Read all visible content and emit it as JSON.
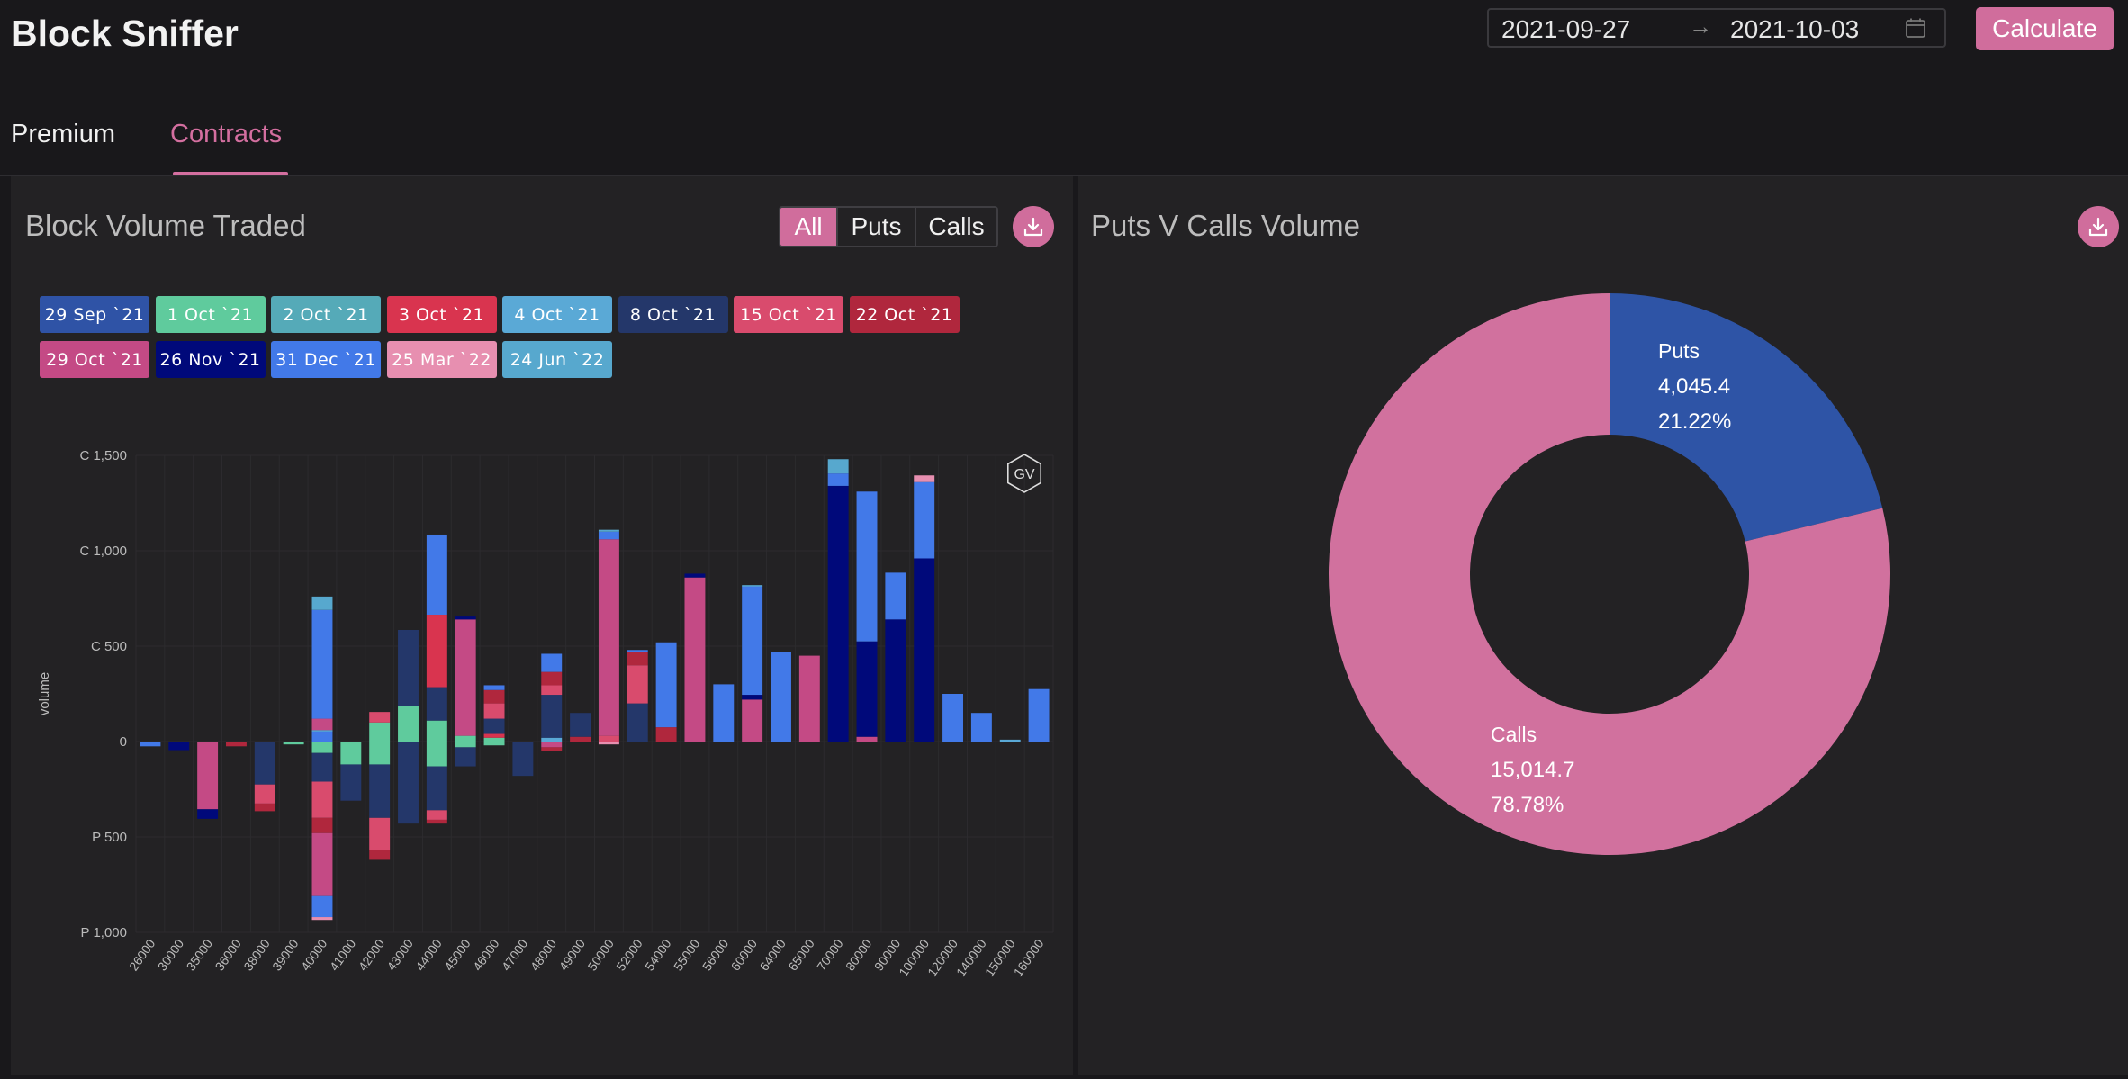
{
  "header": {
    "app_title": "Block Sniffer",
    "date_start": "2021-09-27",
    "date_separator": "→",
    "date_end": "2021-10-03",
    "calculate_label": "Calculate"
  },
  "tabs": [
    {
      "label": "Premium",
      "active": false
    },
    {
      "label": "Contracts",
      "active": true
    }
  ],
  "left_panel": {
    "title": "Block Volume Traded",
    "filter": {
      "options": [
        "All",
        "Puts",
        "Calls"
      ],
      "selected": "All"
    },
    "expiries": [
      {
        "label": "29 Sep `21",
        "color": "#2f53a6"
      },
      {
        "label": "1 Oct `21",
        "color": "#5fcb9d"
      },
      {
        "label": "2 Oct `21",
        "color": "#55aab8"
      },
      {
        "label": "3 Oct `21",
        "color": "#d9344f"
      },
      {
        "label": "4 Oct `21",
        "color": "#5aa9d6"
      },
      {
        "label": "8 Oct `21",
        "color": "#24376a"
      },
      {
        "label": "15 Oct `21",
        "color": "#d94b6d"
      },
      {
        "label": "22 Oct `21",
        "color": "#b0273d"
      },
      {
        "label": "29 Oct `21",
        "color": "#c44a85"
      },
      {
        "label": "26 Nov `21",
        "color": "#00097a"
      },
      {
        "label": "31 Dec `21",
        "color": "#4279e8"
      },
      {
        "label": "25 Mar `22",
        "color": "#e78fb0"
      },
      {
        "label": "24 Jun `22",
        "color": "#57a8ce"
      }
    ],
    "watermark": "GV"
  },
  "right_panel": {
    "title": "Puts V Calls Volume"
  },
  "chart_data": [
    {
      "type": "bar",
      "title": "",
      "ylabel": "volume",
      "ylim": [
        -1000,
        1500
      ],
      "yticks": [
        {
          "value": 1500,
          "label": "C 1,500"
        },
        {
          "value": 1000,
          "label": "C 1,000"
        },
        {
          "value": 500,
          "label": "C 500"
        },
        {
          "value": 0,
          "label": "0"
        },
        {
          "value": -500,
          "label": "P 500"
        },
        {
          "value": -1000,
          "label": "P 1,000"
        }
      ],
      "categories": [
        "26000",
        "30000",
        "35000",
        "36000",
        "38000",
        "39000",
        "40000",
        "41000",
        "42000",
        "43000",
        "44000",
        "45000",
        "46000",
        "47000",
        "48000",
        "49000",
        "50000",
        "52000",
        "54000",
        "55000",
        "56000",
        "60000",
        "64000",
        "65000",
        "70000",
        "80000",
        "90000",
        "100000",
        "120000",
        "140000",
        "150000",
        "160000"
      ],
      "stacks": [
        {
          "x": "26000",
          "segments": [
            {
              "expiry": "31 Dec `21",
              "value": -25
            }
          ]
        },
        {
          "x": "30000",
          "segments": [
            {
              "expiry": "26 Nov `21",
              "value": -45
            }
          ]
        },
        {
          "x": "35000",
          "segments": [
            {
              "expiry": "29 Oct `21",
              "value": -355
            },
            {
              "expiry": "26 Nov `21",
              "value": -50
            }
          ]
        },
        {
          "x": "36000",
          "segments": [
            {
              "expiry": "22 Oct `21",
              "value": -25
            }
          ]
        },
        {
          "x": "38000",
          "segments": [
            {
              "expiry": "8 Oct `21",
              "value": -225
            },
            {
              "expiry": "15 Oct `21",
              "value": -100
            },
            {
              "expiry": "22 Oct `21",
              "value": -40
            }
          ]
        },
        {
          "x": "39000",
          "segments": [
            {
              "expiry": "1 Oct `21",
              "value": -15
            }
          ]
        },
        {
          "x": "40000",
          "segments": [
            {
              "expiry": "31 Dec `21",
              "value": 60
            },
            {
              "expiry": "24 Jun `22",
              "value": 0
            },
            {
              "expiry": "29 Oct `21",
              "value": 60
            },
            {
              "expiry": "31 Dec `21",
              "value": 570
            },
            {
              "expiry": "24 Jun `22",
              "value": 70
            },
            {
              "expiry": "1 Oct `21",
              "value": -60
            },
            {
              "expiry": "8 Oct `21",
              "value": -150
            },
            {
              "expiry": "15 Oct `21",
              "value": -190
            },
            {
              "expiry": "22 Oct `21",
              "value": -80
            },
            {
              "expiry": "29 Oct `21",
              "value": -330
            },
            {
              "expiry": "31 Dec `21",
              "value": -110
            },
            {
              "expiry": "25 Mar `22",
              "value": -15
            }
          ]
        },
        {
          "x": "41000",
          "segments": [
            {
              "expiry": "1 Oct `21",
              "value": -120
            },
            {
              "expiry": "8 Oct `21",
              "value": -190
            }
          ]
        },
        {
          "x": "42000",
          "segments": [
            {
              "expiry": "1 Oct `21",
              "value": 100
            },
            {
              "expiry": "15 Oct `21",
              "value": 55
            },
            {
              "expiry": "1 Oct `21",
              "value": -120
            },
            {
              "expiry": "8 Oct `21",
              "value": -280
            },
            {
              "expiry": "15 Oct `21",
              "value": -170
            },
            {
              "expiry": "22 Oct `21",
              "value": -50
            }
          ]
        },
        {
          "x": "43000",
          "segments": [
            {
              "expiry": "1 Oct `21",
              "value": 185
            },
            {
              "expiry": "8 Oct `21",
              "value": 400
            },
            {
              "expiry": "8 Oct `21",
              "value": -430
            }
          ]
        },
        {
          "x": "44000",
          "segments": [
            {
              "expiry": "1 Oct `21",
              "value": 110
            },
            {
              "expiry": "8 Oct `21",
              "value": 175
            },
            {
              "expiry": "3 Oct `21",
              "value": 380
            },
            {
              "expiry": "31 Dec `21",
              "value": 420
            },
            {
              "expiry": "1 Oct `21",
              "value": -130
            },
            {
              "expiry": "8 Oct `21",
              "value": -230
            },
            {
              "expiry": "15 Oct `21",
              "value": -50
            },
            {
              "expiry": "22 Oct `21",
              "value": -20
            }
          ]
        },
        {
          "x": "45000",
          "segments": [
            {
              "expiry": "1 Oct `21",
              "value": 30
            },
            {
              "expiry": "29 Oct `21",
              "value": 610
            },
            {
              "expiry": "26 Nov `21",
              "value": 15
            },
            {
              "expiry": "1 Oct `21",
              "value": -30
            },
            {
              "expiry": "8 Oct `21",
              "value": -100
            }
          ]
        },
        {
          "x": "46000",
          "segments": [
            {
              "expiry": "1 Oct `21",
              "value": 20
            },
            {
              "expiry": "3 Oct `21",
              "value": 20
            },
            {
              "expiry": "8 Oct `21",
              "value": 80
            },
            {
              "expiry": "15 Oct `21",
              "value": 80
            },
            {
              "expiry": "22 Oct `21",
              "value": 70
            },
            {
              "expiry": "31 Dec `21",
              "value": 25
            },
            {
              "expiry": "1 Oct `21",
              "value": -20
            }
          ]
        },
        {
          "x": "47000",
          "segments": [
            {
              "expiry": "8 Oct `21",
              "value": -180
            }
          ]
        },
        {
          "x": "48000",
          "segments": [
            {
              "expiry": "4 Oct `21",
              "value": 20
            },
            {
              "expiry": "8 Oct `21",
              "value": 225
            },
            {
              "expiry": "15 Oct `21",
              "value": 50
            },
            {
              "expiry": "22 Oct `21",
              "value": 70
            },
            {
              "expiry": "31 Dec `21",
              "value": 95
            },
            {
              "expiry": "29 Oct `21",
              "value": -30
            },
            {
              "expiry": "22 Oct `21",
              "value": -20
            }
          ]
        },
        {
          "x": "49000",
          "segments": [
            {
              "expiry": "22 Oct `21",
              "value": 25
            },
            {
              "expiry": "8 Oct `21",
              "value": 125
            }
          ]
        },
        {
          "x": "50000",
          "segments": [
            {
              "expiry": "15 Oct `21",
              "value": 30
            },
            {
              "expiry": "29 Oct `21",
              "value": 1030
            },
            {
              "expiry": "31 Dec `21",
              "value": 40
            },
            {
              "expiry": "24 Jun `22",
              "value": 10
            },
            {
              "expiry": "25 Mar `22",
              "value": -15
            }
          ]
        },
        {
          "x": "52000",
          "segments": [
            {
              "expiry": "8 Oct `21",
              "value": 200
            },
            {
              "expiry": "15 Oct `21",
              "value": 200
            },
            {
              "expiry": "22 Oct `21",
              "value": 70
            },
            {
              "expiry": "31 Dec `21",
              "value": 10
            }
          ]
        },
        {
          "x": "54000",
          "segments": [
            {
              "expiry": "22 Oct `21",
              "value": 75
            },
            {
              "expiry": "31 Dec `21",
              "value": 445
            }
          ]
        },
        {
          "x": "55000",
          "segments": [
            {
              "expiry": "29 Oct `21",
              "value": 860
            },
            {
              "expiry": "26 Nov `21",
              "value": 20
            }
          ]
        },
        {
          "x": "56000",
          "segments": [
            {
              "expiry": "31 Dec `21",
              "value": 300
            }
          ]
        },
        {
          "x": "60000",
          "segments": [
            {
              "expiry": "29 Oct `21",
              "value": 220
            },
            {
              "expiry": "26 Nov `21",
              "value": 25
            },
            {
              "expiry": "31 Dec `21",
              "value": 570
            },
            {
              "expiry": "24 Jun `22",
              "value": 5
            }
          ]
        },
        {
          "x": "64000",
          "segments": [
            {
              "expiry": "31 Dec `21",
              "value": 470
            }
          ]
        },
        {
          "x": "65000",
          "segments": [
            {
              "expiry": "29 Oct `21",
              "value": 450
            }
          ]
        },
        {
          "x": "70000",
          "segments": [
            {
              "expiry": "26 Nov `21",
              "value": 1340
            },
            {
              "expiry": "31 Dec `21",
              "value": 65
            },
            {
              "expiry": "24 Jun `22",
              "value": 75
            }
          ]
        },
        {
          "x": "80000",
          "segments": [
            {
              "expiry": "29 Oct `21",
              "value": 25
            },
            {
              "expiry": "26 Nov `21",
              "value": 500
            },
            {
              "expiry": "31 Dec `21",
              "value": 785
            }
          ]
        },
        {
          "x": "90000",
          "segments": [
            {
              "expiry": "26 Nov `21",
              "value": 640
            },
            {
              "expiry": "31 Dec `21",
              "value": 245
            }
          ]
        },
        {
          "x": "100000",
          "segments": [
            {
              "expiry": "26 Nov `21",
              "value": 960
            },
            {
              "expiry": "31 Dec `21",
              "value": 400
            },
            {
              "expiry": "25 Mar `22",
              "value": 35
            }
          ]
        },
        {
          "x": "120000",
          "segments": [
            {
              "expiry": "31 Dec `21",
              "value": 250
            }
          ]
        },
        {
          "x": "140000",
          "segments": [
            {
              "expiry": "31 Dec `21",
              "value": 150
            }
          ]
        },
        {
          "x": "150000",
          "segments": [
            {
              "expiry": "4 Oct `21",
              "value": 10
            }
          ]
        },
        {
          "x": "160000",
          "segments": [
            {
              "expiry": "31 Dec `21",
              "value": 275
            }
          ]
        }
      ],
      "grid": true,
      "legend": "top"
    },
    {
      "type": "pie",
      "title": "Puts V Calls Volume",
      "donut": true,
      "slices": [
        {
          "name": "Puts",
          "value": 4045.4,
          "value_label": "4,045.4",
          "percent_label": "21.22%",
          "color": "#2e54a6"
        },
        {
          "name": "Calls",
          "value": 15014.7,
          "value_label": "15,014.7",
          "percent_label": "78.78%",
          "color": "#d1719e"
        }
      ]
    }
  ]
}
